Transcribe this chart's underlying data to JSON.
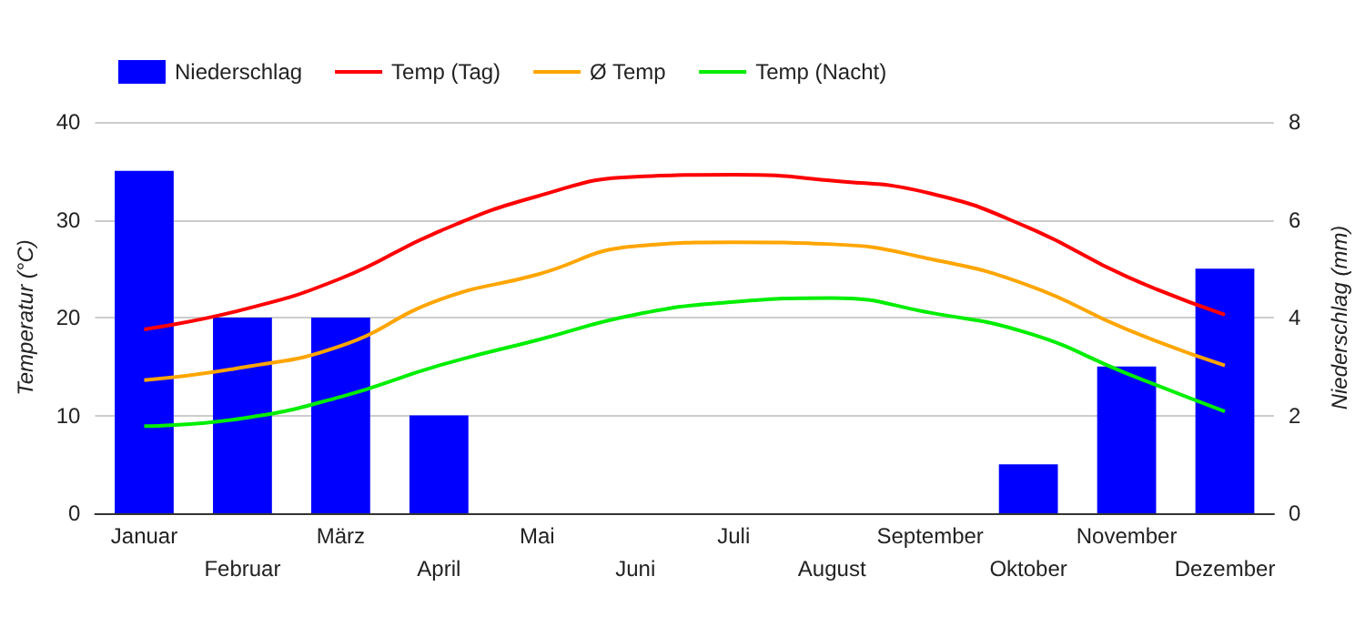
{
  "chart_data": {
    "type": "bar",
    "ylabel": "Temperatur (°C)",
    "y2label": "Niederschlag (mm)",
    "categories": [
      "Januar",
      "Februar",
      "März",
      "April",
      "Mai",
      "Juni",
      "Juli",
      "August",
      "September",
      "Oktober",
      "November",
      "Dezember"
    ],
    "series": [
      {
        "name": "Niederschlag",
        "axis": "y2",
        "color": "#0000ff",
        "values": [
          7,
          4,
          4,
          2,
          0,
          0,
          0,
          0,
          0,
          1,
          3,
          5
        ]
      },
      {
        "name": "Temp (Tag)",
        "type": "line",
        "color": "#ff0000",
        "values": [
          18.8,
          20.8,
          24,
          28.8,
          32.4,
          34.4,
          34.6,
          34,
          32.7,
          29.2,
          24.2,
          20.3
        ]
      },
      {
        "name": "Ø Temp",
        "type": "line",
        "color": "#ffa500",
        "values": [
          13.6,
          14.9,
          17.1,
          21.8,
          24.4,
          27.3,
          27.7,
          27.5,
          26,
          23.3,
          18.8,
          15.1
        ]
      },
      {
        "name": "Temp (Nacht)",
        "type": "line",
        "color": "#00ee00",
        "values": [
          8.9,
          9.7,
          11.9,
          15.1,
          17.7,
          20.3,
          21.6,
          22,
          20.5,
          18.4,
          14.3,
          10.4
        ]
      }
    ],
    "ylim": [
      0,
      40
    ],
    "yticks": [
      0,
      10,
      20,
      30,
      40
    ],
    "y2lim": [
      0,
      8
    ],
    "y2ticks": [
      0,
      2,
      4,
      6,
      8
    ],
    "grid": "y",
    "legend": "top left",
    "marker": "none",
    "line_style": "solid"
  }
}
